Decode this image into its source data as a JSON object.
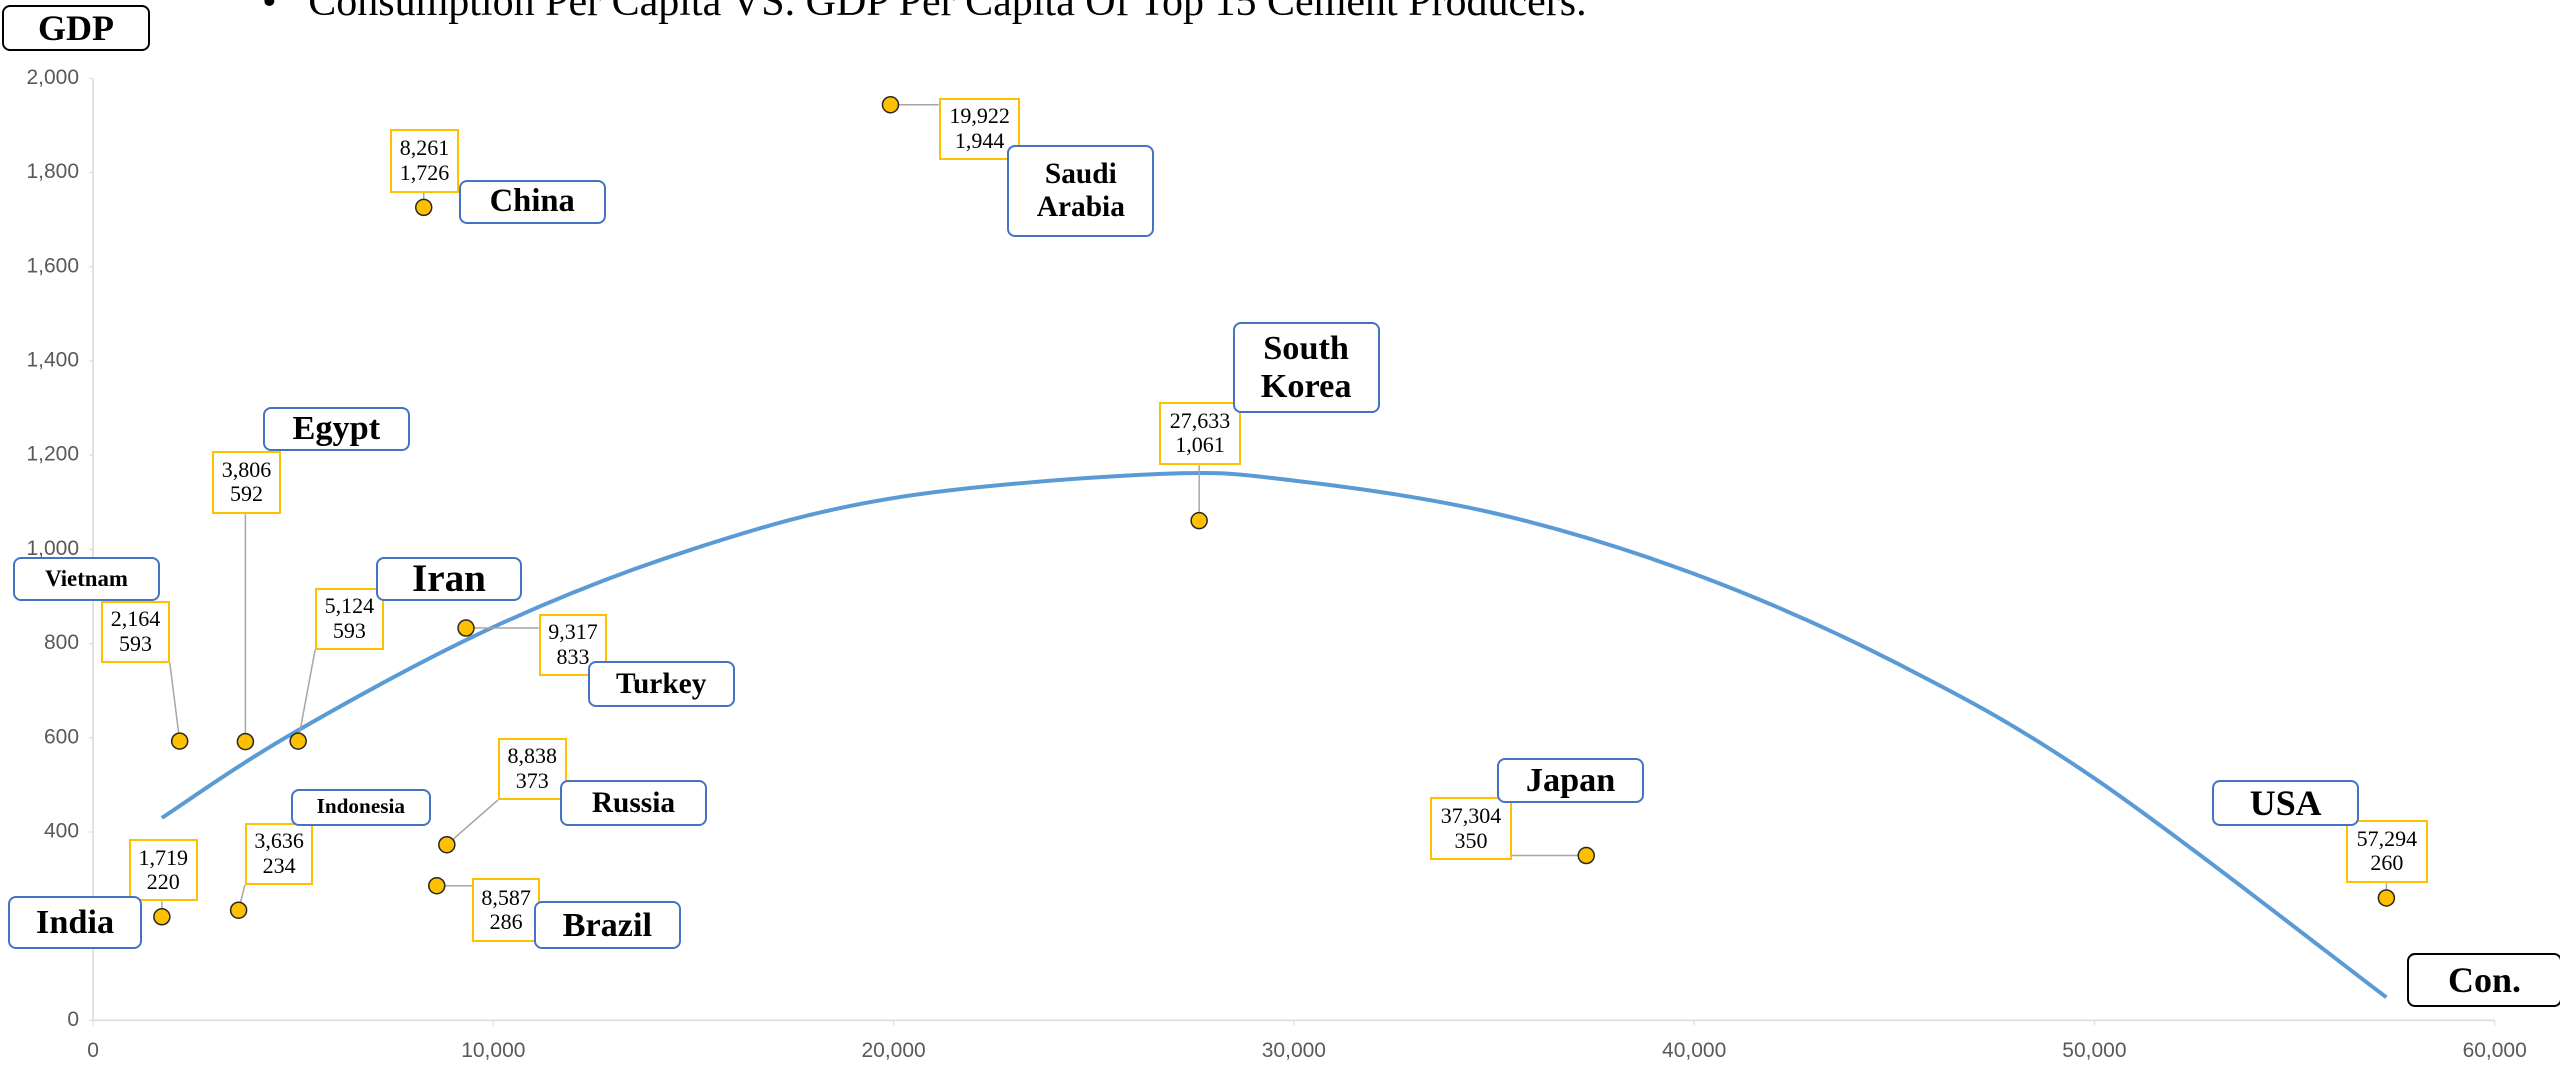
{
  "chart_data": {
    "type": "scatter",
    "title": "Consumption Per Capita VS. GDP Per Capita Of Top 15 Cement Producers.",
    "bullet": "•",
    "xlabel": "Con.",
    "ylabel": "GDP",
    "labels": [
      "China",
      "Saudi Arabia",
      "South Korea",
      "Egypt",
      "Vietnam",
      "Iran",
      "Turkey",
      "Russia",
      "Indonesia",
      "India",
      "Brazil",
      "Japan",
      "USA"
    ],
    "x": [
      8261,
      19922,
      27633,
      3806,
      2164,
      5124,
      9317,
      8838,
      3636,
      1719,
      8587,
      37304,
      57294
    ],
    "x_value_labels": [
      "8,261",
      "19,922",
      "27,633",
      "3,806",
      "2,164",
      "5,124",
      "9,317",
      "8,838",
      "3,636",
      "1,719",
      "8,587",
      "37,304",
      "57,294"
    ],
    "values": [
      1726,
      1944,
      1061,
      592,
      593,
      593,
      833,
      373,
      234,
      220,
      286,
      350,
      260
    ],
    "value_labels": [
      "1,726",
      "1,944",
      "1,061",
      "592",
      "593",
      "593",
      "833",
      "373",
      "234",
      "220",
      "286",
      "350",
      "260"
    ],
    "color": "#ffc000",
    "trendline": {
      "color": "#5b9bd5",
      "x": [
        1719,
        5000,
        10000,
        15000,
        20000,
        26600,
        30000,
        35000,
        40000,
        45000,
        50000,
        57294
      ],
      "values": [
        430,
        610,
        835,
        1001,
        1109,
        1160,
        1146,
        1077,
        948,
        761,
        514,
        49
      ]
    },
    "xlim": [
      0,
      60000
    ],
    "xticks": [
      0,
      {
        "value": 10000,
        "label": "10,000"
      },
      {
        "value": 20000,
        "label": "20,000"
      },
      {
        "value": 30000,
        "label": "30,000"
      },
      {
        "value": 40000,
        "label": "40,000"
      },
      {
        "value": 50000,
        "label": "50,000"
      },
      {
        "value": 60000,
        "label": "60,000"
      }
    ],
    "ylim": [
      0,
      2000
    ],
    "yticks": [
      0,
      200,
      400,
      600,
      800,
      {
        "value": 1000,
        "label": "1,000"
      },
      {
        "value": 1200,
        "label": "1,200"
      },
      {
        "value": 1400,
        "label": "1,400"
      },
      {
        "value": 1600,
        "label": "1,600"
      },
      {
        "value": 1800,
        "label": "1,800"
      },
      {
        "value": 2000,
        "label": "2,000"
      }
    ]
  }
}
